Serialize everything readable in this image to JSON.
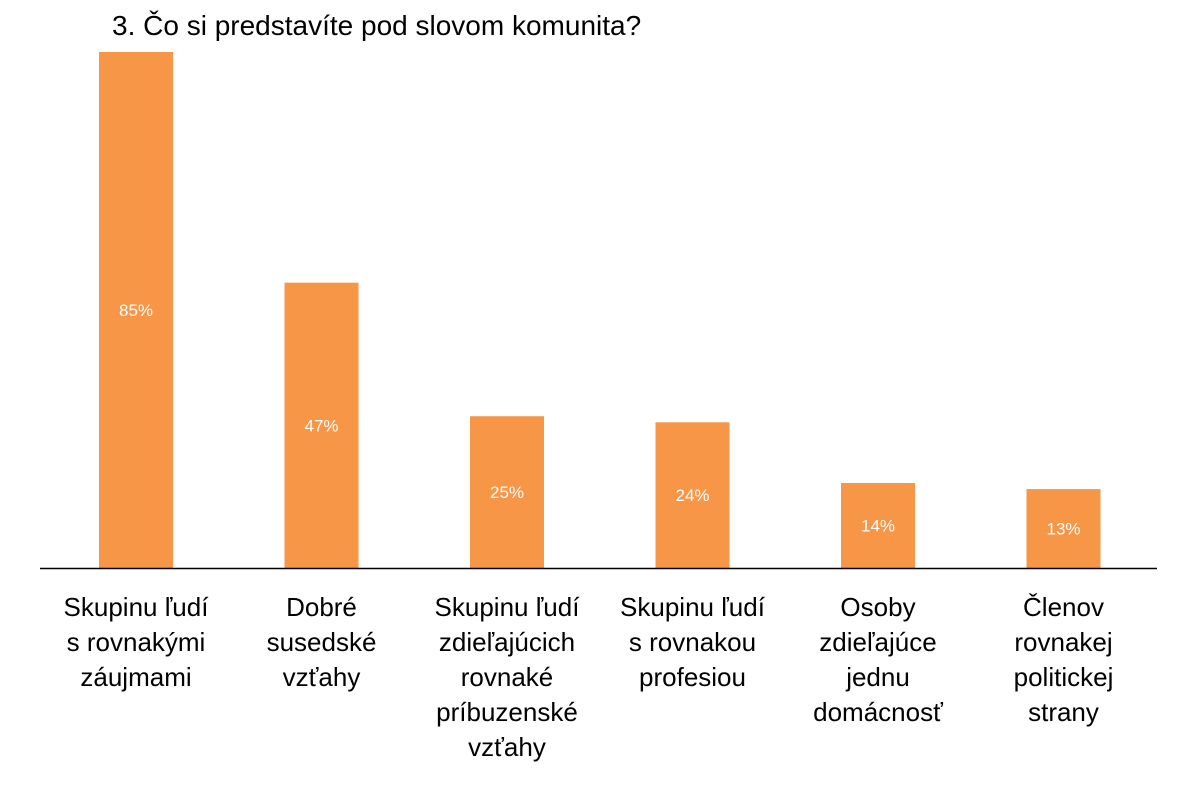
{
  "chart_data": {
    "type": "bar",
    "title": "3. Čo si predstavíte pod slovom komunita?",
    "categories": [
      [
        "Skupinu ľudí",
        "s rovnakými",
        "záujmami"
      ],
      [
        "Dobré",
        "susedské",
        "vzťahy"
      ],
      [
        "Skupinu ľudí",
        "zdieľajúcich",
        "rovnaké",
        "príbuzenské",
        "vzťahy"
      ],
      [
        "Skupinu ľudí",
        "s rovnakou",
        "profesiou"
      ],
      [
        "Osoby",
        "zdieľajúce",
        "jednu",
        "domácnosť"
      ],
      [
        "Členov",
        "rovnakej",
        "politickej",
        "strany"
      ]
    ],
    "values": [
      85,
      47,
      25,
      24,
      14,
      13
    ],
    "data_labels": [
      "85%",
      "47%",
      "25%",
      "24%",
      "14%",
      "13%"
    ],
    "ylim": [
      0,
      85
    ],
    "grid": false,
    "legend": "none",
    "bar_color": "#F79646",
    "axis_color": "#000000",
    "label_color": "#ffffff"
  }
}
